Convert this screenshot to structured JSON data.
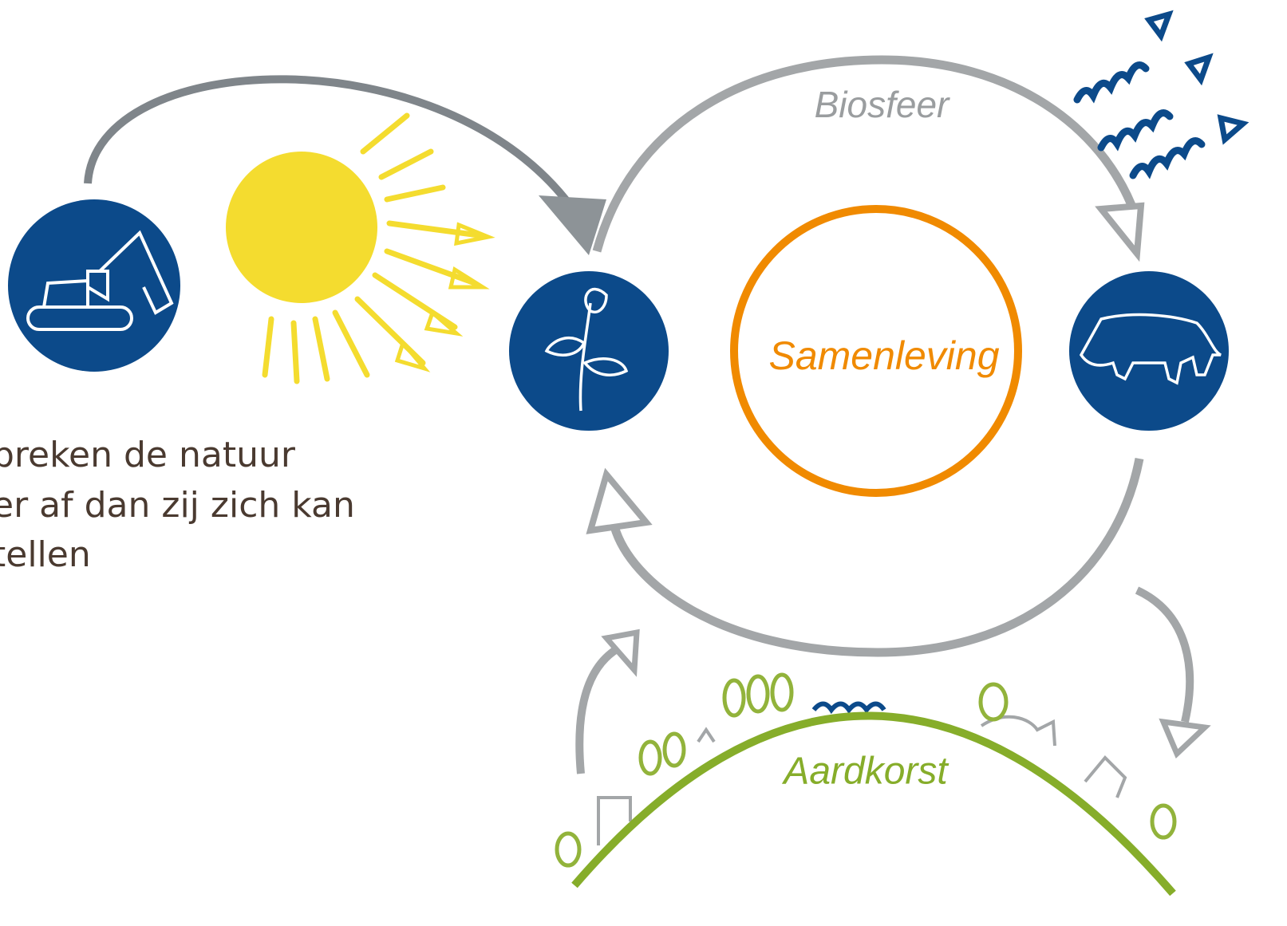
{
  "caption": [
    "breken de natuur",
    "er af dan zij zich kan",
    "tellen"
  ],
  "labels": {
    "biosfeer": "Biosfeer",
    "samenleving": "Samenleving",
    "aardkorst": "Aardkorst"
  }
}
